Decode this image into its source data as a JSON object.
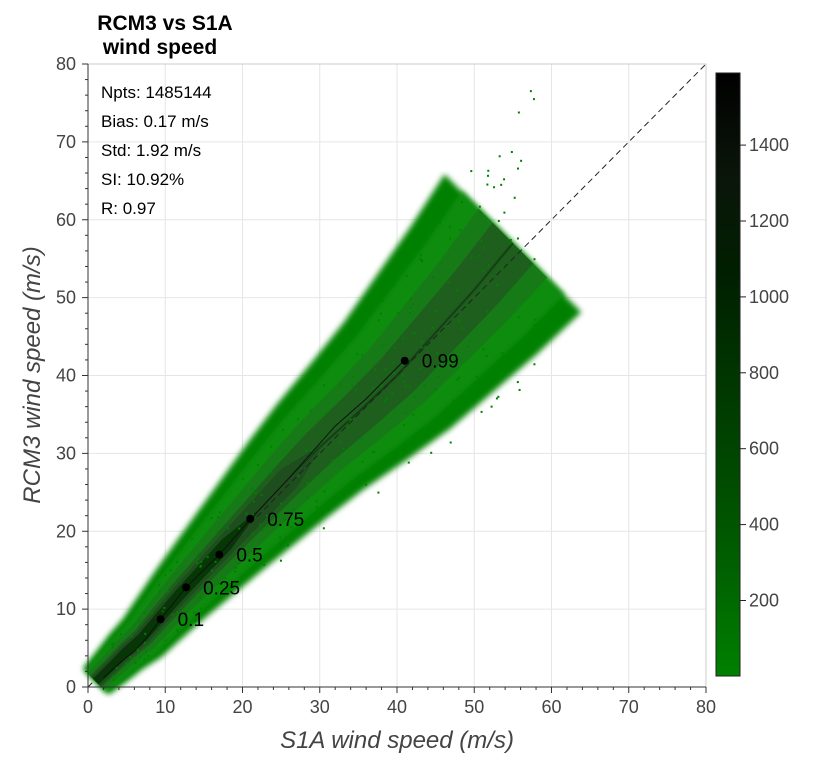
{
  "chart_data": {
    "type": "heatmap",
    "title_lines": [
      "RCM3 vs S1A",
      "wind speed"
    ],
    "xlabel": "S1A wind speed (m/s)",
    "ylabel": "RCM3 wind speed (m/s)",
    "xlim": [
      0,
      80
    ],
    "ylim": [
      0,
      80
    ],
    "x_ticks": [
      0,
      10,
      20,
      30,
      40,
      50,
      60,
      70,
      80
    ],
    "y_ticks": [
      0,
      10,
      20,
      30,
      40,
      50,
      60,
      70,
      80
    ],
    "grid": true,
    "stats": [
      "Npts: 1485144",
      "Bias: 0.17 m/s",
      "Std: 1.92 m/s",
      "SI: 10.92%",
      "R: 0.97"
    ],
    "identity_line": {
      "from": [
        0,
        0
      ],
      "to": [
        80,
        80
      ],
      "style": "dashed"
    },
    "density_cloud": {
      "ridge": [
        [
          1,
          0.7
        ],
        [
          3,
          2.6
        ],
        [
          5,
          4.6
        ],
        [
          7,
          6.3
        ],
        [
          9,
          8.6
        ],
        [
          12,
          12.0
        ],
        [
          15,
          15.2
        ],
        [
          18,
          18.4
        ],
        [
          22,
          22.6
        ],
        [
          26,
          26.8
        ],
        [
          30,
          30.8
        ],
        [
          35,
          35.3
        ],
        [
          40,
          40.0
        ],
        [
          45,
          45.5
        ],
        [
          50,
          51.0
        ],
        [
          55,
          57.0
        ]
      ],
      "core_colors": [
        "#003300",
        "#1f4a1f",
        "#1f5c1f",
        "#177a17",
        "#0a8c0a",
        "#008000"
      ]
    },
    "quantile_curve": [
      [
        2,
        1.2
      ],
      [
        4,
        3.0
      ],
      [
        6,
        4.6
      ],
      [
        7.5,
        6.2
      ],
      [
        9.4,
        8.7
      ],
      [
        12.7,
        12.8
      ],
      [
        17,
        17.0
      ],
      [
        21,
        21.5
      ],
      [
        26,
        26.8
      ],
      [
        32,
        33.5
      ],
      [
        36,
        37.0
      ],
      [
        41,
        42.0
      ]
    ],
    "quantile_points": [
      {
        "x": 9.4,
        "y": 8.7,
        "label": "0.1"
      },
      {
        "x": 12.7,
        "y": 12.8,
        "label": "0.25"
      },
      {
        "x": 17.0,
        "y": 17.0,
        "label": "0.5"
      },
      {
        "x": 21.0,
        "y": 21.6,
        "label": "0.75"
      },
      {
        "x": 41.0,
        "y": 41.9,
        "label": "0.99"
      }
    ],
    "colorbar": {
      "range": [
        1,
        1590
      ],
      "ticks": [
        200,
        400,
        600,
        800,
        1000,
        1200,
        1400
      ],
      "colors": [
        "#008000",
        "#006200",
        "#004a00",
        "#003500",
        "#001f00",
        "#0a150a",
        "#000000"
      ]
    }
  }
}
